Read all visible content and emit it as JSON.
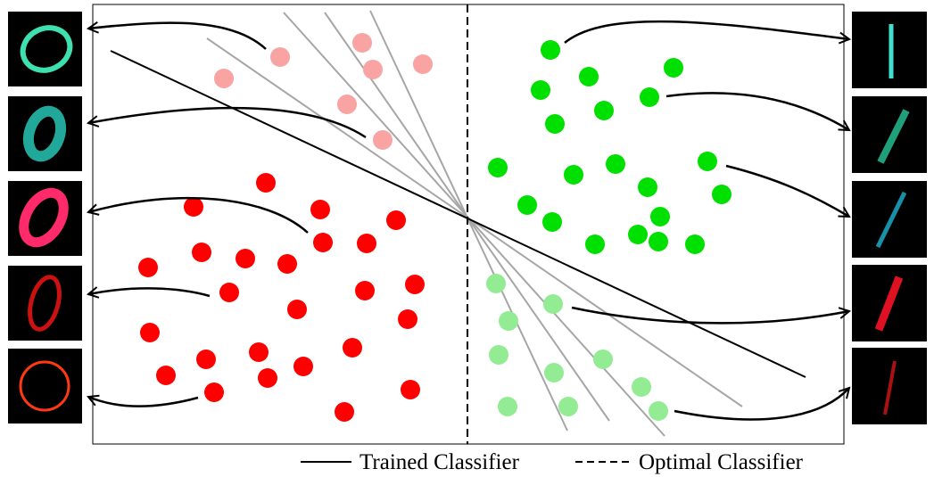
{
  "legend": {
    "trained_label": "Trained Classifier",
    "optimal_label": "Optimal Classifier"
  },
  "colors": {
    "class0_dark": "#ff0000",
    "class0_light": "#f9a3a3",
    "class1_dark": "#00e000",
    "class1_light": "#93ec93",
    "trained_line": "#000000",
    "candidate_lines": "#a6a6a6",
    "optimal_line": "#000000",
    "thumb_background": "#000000"
  },
  "clusters": [
    {
      "name": "class0-dark-points",
      "count": 30
    },
    {
      "name": "class0-light-points",
      "count": 8
    },
    {
      "name": "class1-dark-points",
      "count": 21
    },
    {
      "name": "class1-light-points",
      "count": 11
    }
  ],
  "thumbnails": {
    "left": [
      {
        "digit": "0",
        "color": "#3fe0b0"
      },
      {
        "digit": "0",
        "color": "#22a89a"
      },
      {
        "digit": "0",
        "color": "#ff2a6a"
      },
      {
        "digit": "0",
        "color": "#cc1111"
      },
      {
        "digit": "0",
        "color": "#ff3a10"
      }
    ],
    "right": [
      {
        "digit": "1",
        "color": "#40e0d0"
      },
      {
        "digit": "1",
        "color": "#1fa07a"
      },
      {
        "digit": "1",
        "color": "#1790a8"
      },
      {
        "digit": "1",
        "color": "#dd1122"
      },
      {
        "digit": "1",
        "color": "#aa1111"
      }
    ]
  }
}
